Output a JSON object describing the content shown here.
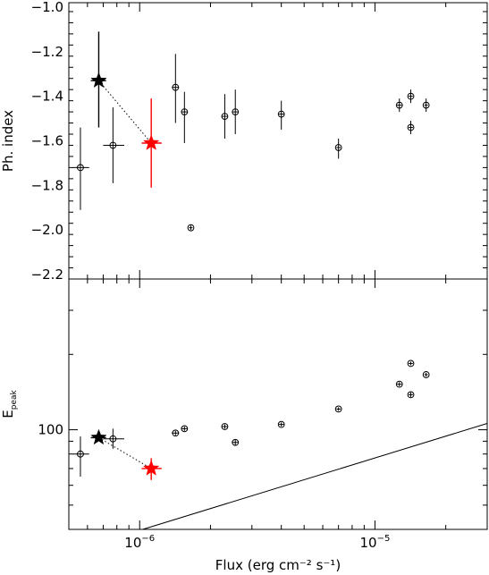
{
  "chart_data": [
    {
      "type": "scatter",
      "panel": "top",
      "title": "",
      "xlabel": "",
      "ylabel": "Ph. index",
      "xscale": "log",
      "xlim": [
        5e-07,
        3e-05
      ],
      "ylim": [
        -2.22,
        -0.98
      ],
      "yticks": [
        -2.2,
        -2.0,
        -1.8,
        -1.6,
        -1.4,
        -1.2,
        -1.0
      ],
      "ytick_labels": [
        "−2.2",
        "−2.0",
        "−1.8",
        "−1.6",
        "−1.4",
        "−1.2",
        "−1.0"
      ],
      "grid": false,
      "legend": "none",
      "series": [
        {
          "marker": "circle",
          "color": "#000000",
          "points": [
            {
              "x": 5.6e-07,
              "y": -1.72,
              "xlo": 5.2e-07,
              "xhi": 6.1e-07,
              "ylo": -1.91,
              "yhi": -1.54
            },
            {
              "x": 7.7e-07,
              "y": -1.62,
              "xlo": 7e-07,
              "xhi": 8.6e-07,
              "ylo": -1.79,
              "yhi": -1.45
            },
            {
              "x": 1.42e-06,
              "y": -1.36,
              "xlo": 1.37e-06,
              "xhi": 1.47e-06,
              "ylo": -1.52,
              "yhi": -1.21
            },
            {
              "x": 1.55e-06,
              "y": -1.47,
              "xlo": 1.5e-06,
              "xhi": 1.6e-06,
              "ylo": -1.61,
              "yhi": -1.38
            },
            {
              "x": 1.65e-06,
              "y": -1.99,
              "xlo": 1.62e-06,
              "xhi": 1.68e-06,
              "ylo": -2.0,
              "yhi": -1.98
            },
            {
              "x": 2.3e-06,
              "y": -1.49,
              "xlo": 2.24e-06,
              "xhi": 2.36e-06,
              "ylo": -1.59,
              "yhi": -1.39
            },
            {
              "x": 2.55e-06,
              "y": -1.47,
              "xlo": 2.48e-06,
              "xhi": 2.62e-06,
              "ylo": -1.57,
              "yhi": -1.37
            },
            {
              "x": 4e-06,
              "y": -1.48,
              "xlo": 3.9e-06,
              "xhi": 4.1e-06,
              "ylo": -1.55,
              "yhi": -1.42
            },
            {
              "x": 7e-06,
              "y": -1.63,
              "xlo": 6.85e-06,
              "xhi": 7.15e-06,
              "ylo": -1.68,
              "yhi": -1.59
            },
            {
              "x": 1.27e-05,
              "y": -1.44,
              "xlo": 1.24e-05,
              "xhi": 1.3e-05,
              "ylo": -1.47,
              "yhi": -1.41
            },
            {
              "x": 1.42e-05,
              "y": -1.4,
              "xlo": 1.39e-05,
              "xhi": 1.45e-05,
              "ylo": -1.43,
              "yhi": -1.37
            },
            {
              "x": 1.42e-05,
              "y": -1.54,
              "xlo": 1.39e-05,
              "xhi": 1.45e-05,
              "ylo": -1.57,
              "yhi": -1.51
            },
            {
              "x": 1.65e-05,
              "y": -1.44,
              "xlo": 1.62e-05,
              "xhi": 1.68e-05,
              "ylo": -1.47,
              "yhi": -1.41
            }
          ]
        },
        {
          "marker": "star",
          "color": "#000000",
          "points": [
            {
              "x": 6.7e-07,
              "y": -1.33,
              "xlo": 6.2e-07,
              "xhi": 7.2e-07,
              "ylo": -1.54,
              "yhi": -1.11
            }
          ]
        },
        {
          "marker": "star",
          "color": "#ff0000",
          "points": [
            {
              "x": 1.12e-06,
              "y": -1.61,
              "xlo": 1.02e-06,
              "xhi": 1.24e-06,
              "ylo": -1.81,
              "yhi": -1.41
            }
          ]
        }
      ],
      "connector": {
        "style": "dotted",
        "from": [
          6.7e-07,
          -1.33
        ],
        "to": [
          1.12e-06,
          -1.61
        ]
      }
    },
    {
      "type": "scatter",
      "panel": "bottom",
      "title": "",
      "xlabel": "Flux (erg cm⁻² s⁻¹)",
      "ylabel": "Epeak",
      "ylabel_main": "E",
      "ylabel_sub": "peak",
      "xscale": "log",
      "yscale": "log",
      "xlim": [
        5e-07,
        3e-05
      ],
      "ylim": [
        40,
        400
      ],
      "xticks": [
        1e-06,
        1e-05
      ],
      "xtick_labels": [
        [
          "10",
          "−6"
        ],
        [
          "10",
          "−5"
        ]
      ],
      "yticks": [
        100
      ],
      "ytick_labels": [
        "100"
      ],
      "grid": false,
      "legend": "none",
      "series": [
        {
          "marker": "circle",
          "color": "#000000",
          "points": [
            {
              "x": 5.6e-07,
              "y": 80,
              "xlo": 5.2e-07,
              "xhi": 6.1e-07,
              "ylo": 65,
              "yhi": 94
            },
            {
              "x": 7.7e-07,
              "y": 92,
              "xlo": 7e-07,
              "xhi": 8.6e-07,
              "ylo": 84,
              "yhi": 101
            },
            {
              "x": 1.42e-06,
              "y": 97,
              "xlo": 1.37e-06,
              "xhi": 1.47e-06,
              "ylo": 95,
              "yhi": 99
            },
            {
              "x": 1.55e-06,
              "y": 101,
              "xlo": 1.5e-06,
              "xhi": 1.6e-06,
              "ylo": 99,
              "yhi": 103
            },
            {
              "x": 2.3e-06,
              "y": 103,
              "xlo": 2.24e-06,
              "xhi": 2.36e-06,
              "ylo": 101,
              "yhi": 105
            },
            {
              "x": 2.55e-06,
              "y": 89,
              "xlo": 2.48e-06,
              "xhi": 2.62e-06,
              "ylo": 87,
              "yhi": 91
            },
            {
              "x": 4e-06,
              "y": 105,
              "xlo": 3.9e-06,
              "xhi": 4.1e-06,
              "ylo": 103,
              "yhi": 107
            },
            {
              "x": 7e-06,
              "y": 121,
              "xlo": 6.85e-06,
              "xhi": 7.15e-06,
              "ylo": 119,
              "yhi": 123
            },
            {
              "x": 1.27e-05,
              "y": 152,
              "xlo": 1.24e-05,
              "xhi": 1.3e-05,
              "ylo": 149,
              "yhi": 155
            },
            {
              "x": 1.42e-05,
              "y": 184,
              "xlo": 1.39e-05,
              "xhi": 1.45e-05,
              "ylo": 181,
              "yhi": 187
            },
            {
              "x": 1.42e-05,
              "y": 138,
              "xlo": 1.39e-05,
              "xhi": 1.45e-05,
              "ylo": 135,
              "yhi": 141
            },
            {
              "x": 1.65e-05,
              "y": 166,
              "xlo": 1.62e-05,
              "xhi": 1.68e-05,
              "ylo": 163,
              "yhi": 169
            }
          ]
        },
        {
          "marker": "star",
          "color": "#000000",
          "points": [
            {
              "x": 6.7e-07,
              "y": 93,
              "xlo": 6.2e-07,
              "xhi": 7.2e-07,
              "ylo": 91,
              "yhi": 95
            }
          ]
        },
        {
          "marker": "star",
          "color": "#ff0000",
          "points": [
            {
              "x": 1.12e-06,
              "y": 70,
              "xlo": 1.02e-06,
              "xhi": 1.24e-06,
              "ylo": 63,
              "yhi": 77
            }
          ]
        }
      ],
      "connector": {
        "style": "dotted",
        "from": [
          6.7e-07,
          93
        ],
        "to": [
          1.12e-06,
          70
        ]
      },
      "reference_line": {
        "style": "solid",
        "from": [
          1.03e-06,
          40
        ],
        "to": [
          3e-05,
          106
        ]
      }
    }
  ]
}
